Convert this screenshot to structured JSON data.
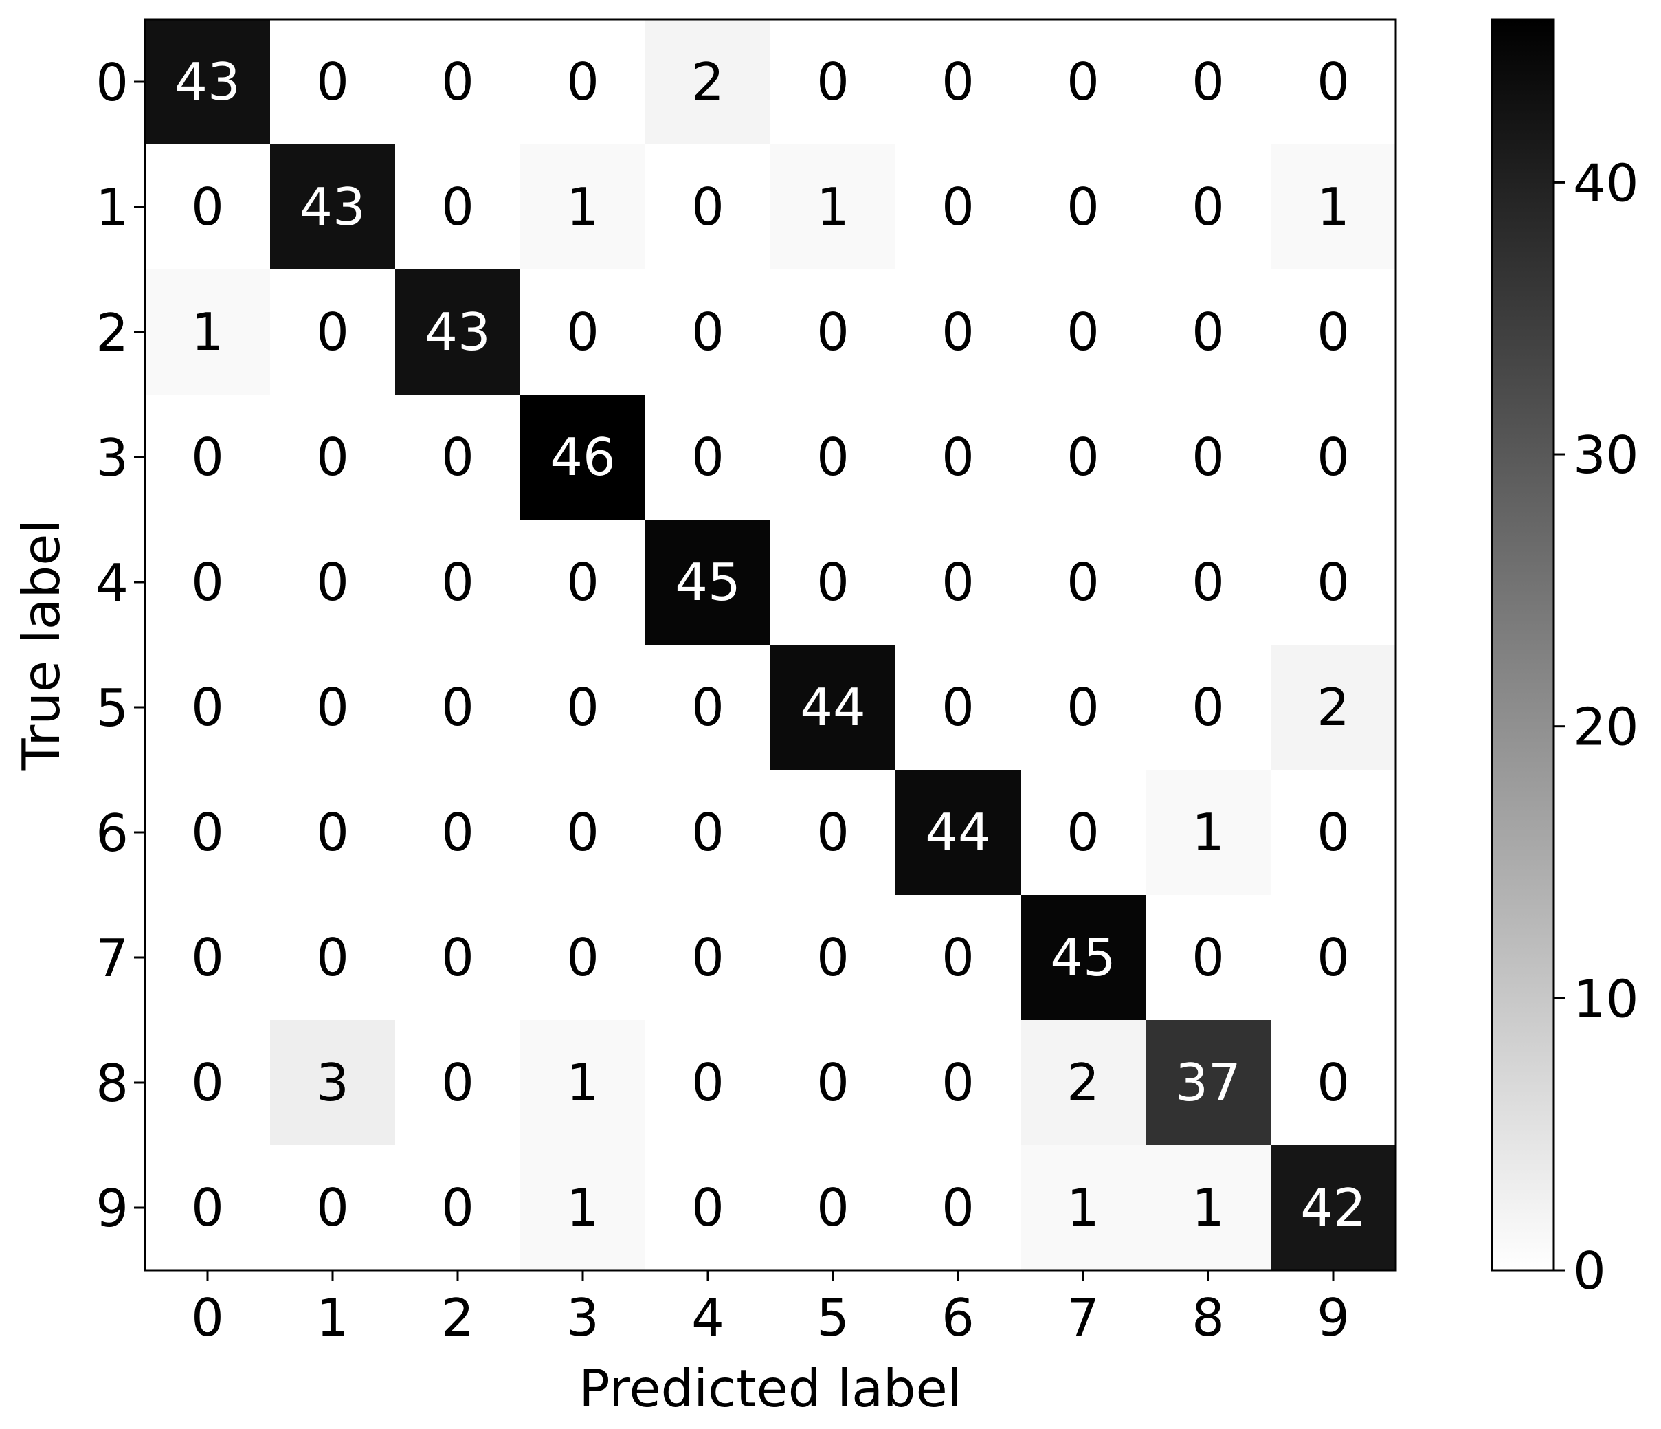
{
  "chart_data": {
    "type": "heatmap",
    "title": "",
    "xlabel": "Predicted label",
    "ylabel": "True label",
    "x_categories": [
      "0",
      "1",
      "2",
      "3",
      "4",
      "5",
      "6",
      "7",
      "8",
      "9"
    ],
    "y_categories": [
      "0",
      "1",
      "2",
      "3",
      "4",
      "5",
      "6",
      "7",
      "8",
      "9"
    ],
    "values": [
      [
        43,
        0,
        0,
        0,
        2,
        0,
        0,
        0,
        0,
        0
      ],
      [
        0,
        43,
        0,
        1,
        0,
        1,
        0,
        0,
        0,
        1
      ],
      [
        1,
        0,
        43,
        0,
        0,
        0,
        0,
        0,
        0,
        0
      ],
      [
        0,
        0,
        0,
        46,
        0,
        0,
        0,
        0,
        0,
        0
      ],
      [
        0,
        0,
        0,
        0,
        45,
        0,
        0,
        0,
        0,
        0
      ],
      [
        0,
        0,
        0,
        0,
        0,
        44,
        0,
        0,
        0,
        2
      ],
      [
        0,
        0,
        0,
        0,
        0,
        0,
        44,
        0,
        1,
        0
      ],
      [
        0,
        0,
        0,
        0,
        0,
        0,
        0,
        45,
        0,
        0
      ],
      [
        0,
        3,
        0,
        1,
        0,
        0,
        0,
        2,
        37,
        0
      ],
      [
        0,
        0,
        0,
        1,
        0,
        0,
        0,
        1,
        1,
        42
      ]
    ],
    "colormap": "Greys",
    "color_range": [
      0,
      46
    ],
    "colorbar_ticks": [
      0,
      10,
      20,
      30,
      40
    ],
    "colorbar_tick_labels": [
      "0",
      "10",
      "20",
      "30",
      "40"
    ],
    "grid": false,
    "colors": {
      "low": "#ffffff",
      "high": "#000000",
      "light_text": "#ffffff",
      "dark_text": "#000000"
    }
  }
}
